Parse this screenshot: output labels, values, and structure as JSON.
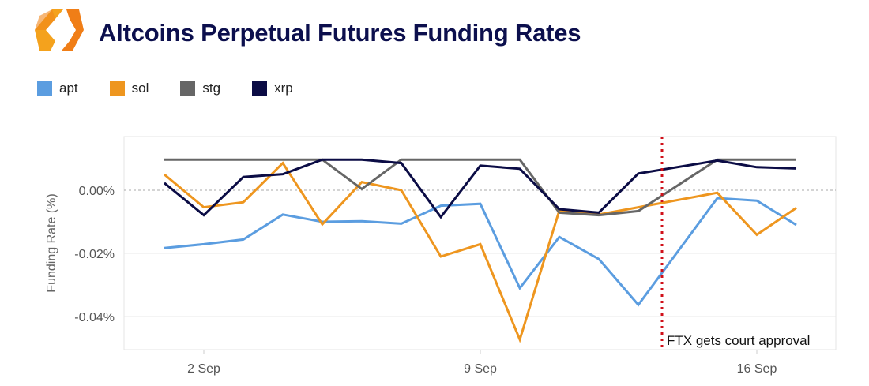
{
  "header": {
    "title": "Altcoins Perpetual Futures Funding Rates",
    "logo": "orange-hexagon-logo"
  },
  "chart_data": {
    "type": "line",
    "title": "Altcoins Perpetual Futures Funding Rates",
    "xlabel": "",
    "ylabel": "Funding Rate (%)",
    "x_unit": "day of September",
    "x": [
      1,
      2,
      3,
      4,
      5,
      6,
      7,
      8,
      9,
      10,
      11,
      12,
      13,
      15,
      16,
      17
    ],
    "xlim": [
      0,
      17.9
    ],
    "ylim": [
      -0.0505,
      0.017
    ],
    "x_ticks": [
      {
        "value": 2,
        "label": "2 Sep"
      },
      {
        "value": 9,
        "label": "9 Sep"
      },
      {
        "value": 16,
        "label": "16 Sep"
      }
    ],
    "y_ticks": [
      {
        "value": 0,
        "label": "0.00%"
      },
      {
        "value": -0.02,
        "label": "-0.02%"
      },
      {
        "value": -0.04,
        "label": "-0.04%"
      }
    ],
    "grid": true,
    "legend": "top-left",
    "series": [
      {
        "name": "apt",
        "color": "#5b9de0",
        "values": [
          -0.0183,
          -0.0171,
          -0.0156,
          -0.0077,
          -0.01,
          -0.0098,
          -0.0106,
          -0.0049,
          -0.0043,
          -0.031,
          -0.0148,
          -0.0218,
          -0.0363,
          -0.0025,
          -0.0033,
          -0.011
        ]
      },
      {
        "name": "sol",
        "color": "#ee961f",
        "values": [
          0.005,
          -0.0054,
          -0.0038,
          0.0086,
          -0.0108,
          0.0026,
          0.0,
          -0.021,
          -0.0171,
          -0.0473,
          -0.0064,
          -0.0077,
          -0.0054,
          -0.0008,
          -0.0141,
          -0.0056
        ]
      },
      {
        "name": "stg",
        "color": "#666666",
        "values": [
          0.0097,
          0.0097,
          0.0097,
          0.0097,
          0.0097,
          0.0004,
          0.0097,
          0.0097,
          0.0097,
          0.0097,
          -0.0071,
          -0.0079,
          -0.0066,
          0.0097,
          0.0097,
          0.0097
        ]
      },
      {
        "name": "xrp",
        "color": "#0b0c45",
        "values": [
          0.0023,
          -0.0079,
          0.0042,
          0.0051,
          0.0097,
          0.0097,
          0.0086,
          -0.0085,
          0.0078,
          0.0068,
          -0.006,
          -0.0071,
          0.0053,
          0.0094,
          0.0073,
          0.0069
        ]
      }
    ],
    "annotations": [
      {
        "x": 13.6,
        "label": "FTX gets court approval",
        "color": "#d0101a",
        "style": "dotted vertical line"
      }
    ]
  }
}
